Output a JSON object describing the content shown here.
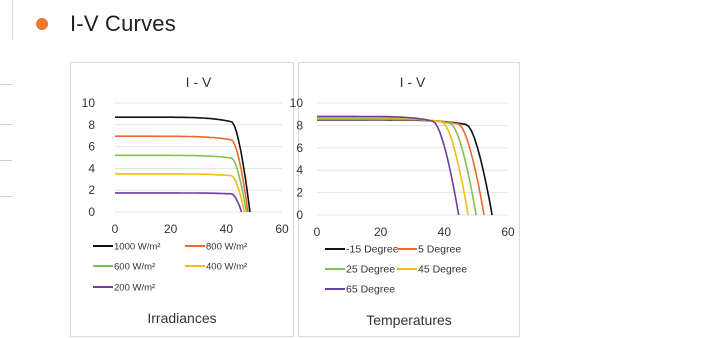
{
  "section": {
    "title": "I-V Curves",
    "accent": "#ee7a2e"
  },
  "chart_data": [
    {
      "type": "line",
      "title": "I - V",
      "caption": "Irradiances",
      "xlim": [
        0,
        60
      ],
      "ylim": [
        0,
        10
      ],
      "xticks": [
        0,
        20,
        40,
        60
      ],
      "yticks": [
        0,
        2,
        4,
        6,
        8,
        10
      ],
      "legend_position": "bottom",
      "grid": "horizontal",
      "series": [
        {
          "name": "1000 W/m²",
          "color": "#111111",
          "isc": 8.7,
          "voc": 48.5,
          "knee": 42
        },
        {
          "name": "800 W/m²",
          "color": "#ed6a2f",
          "isc": 6.95,
          "voc": 47.8,
          "knee": 42
        },
        {
          "name": "600 W/m²",
          "color": "#86bf4f",
          "isc": 5.2,
          "voc": 47.2,
          "knee": 42
        },
        {
          "name": "400 W/m²",
          "color": "#f4bc14",
          "isc": 3.5,
          "voc": 46.5,
          "knee": 42
        },
        {
          "name": "200 W/m²",
          "color": "#6a3fa0",
          "isc": 1.75,
          "voc": 45.5,
          "knee": 42
        }
      ]
    },
    {
      "type": "line",
      "title": "I - V",
      "caption": "Temperatures",
      "xlim": [
        0,
        60
      ],
      "ylim": [
        0,
        10
      ],
      "xticks": [
        0,
        20,
        40,
        60
      ],
      "yticks": [
        0,
        2,
        4,
        6,
        8,
        10
      ],
      "legend_position": "bottom",
      "grid": "horizontal",
      "series": [
        {
          "name": "-15 Degree",
          "color": "#111111",
          "isc": 8.5,
          "voc": 55.0,
          "knee": 47
        },
        {
          "name": "5 Degree",
          "color": "#ed6a2f",
          "isc": 8.55,
          "voc": 52.5,
          "knee": 44.5
        },
        {
          "name": "25 Degree",
          "color": "#86bf4f",
          "isc": 8.6,
          "voc": 50.0,
          "knee": 42
        },
        {
          "name": "45 Degree",
          "color": "#f4bc14",
          "isc": 8.7,
          "voc": 47.5,
          "knee": 39.5
        },
        {
          "name": "65 Degree",
          "color": "#6a3fa0",
          "isc": 8.8,
          "voc": 44.5,
          "knee": 36.5
        }
      ]
    }
  ]
}
